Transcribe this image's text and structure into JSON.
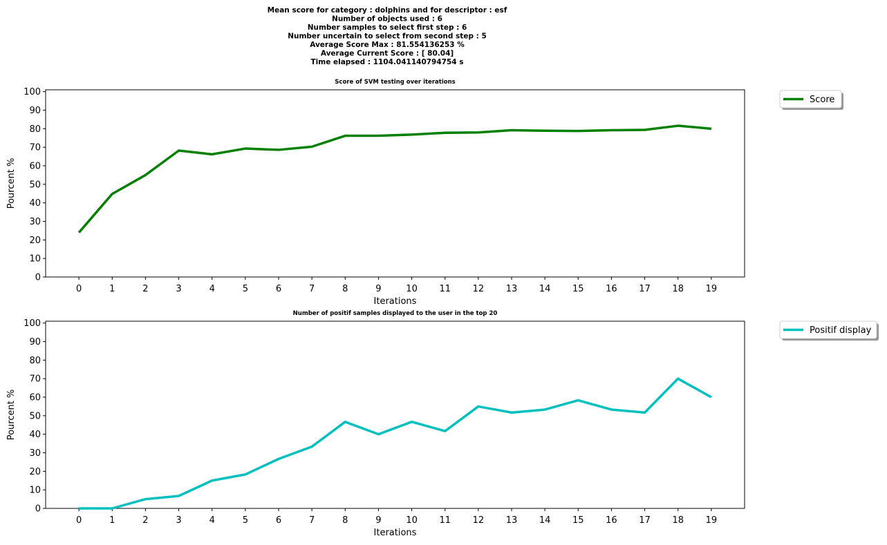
{
  "suptitle_lines": [
    "Mean score for category : dolphins and for descriptor : esf",
    "Number of objects used : 6",
    "Number samples to select first step  : 6",
    "Number uncertain to select from second step  : 5",
    "Average Score Max : 81.554136253 %",
    "Average Current Score : [ 80.04]",
    "Time elapsed : 1104.041140794754 s"
  ],
  "chart_data": [
    {
      "type": "line",
      "title": "Score of SVM testing over iterations",
      "xlabel": "Iterations",
      "ylabel": "Pourcent %",
      "x": [
        0,
        1,
        2,
        3,
        4,
        5,
        6,
        7,
        8,
        9,
        10,
        11,
        12,
        13,
        14,
        15,
        16,
        17,
        18,
        19
      ],
      "xlim": [
        -1,
        20
      ],
      "ylim": [
        0,
        101
      ],
      "yticks": [
        0,
        10,
        20,
        30,
        40,
        50,
        60,
        70,
        80,
        90,
        100
      ],
      "grid": false,
      "legend_position": "outside-top-right",
      "series": [
        {
          "name": "Score",
          "color": "#008000",
          "values": [
            24.0,
            44.8,
            55.0,
            68.2,
            66.2,
            69.3,
            68.6,
            70.3,
            76.2,
            76.2,
            76.8,
            77.8,
            78.0,
            79.2,
            78.9,
            78.8,
            79.2,
            79.4,
            81.6,
            80.0
          ]
        }
      ]
    },
    {
      "type": "line",
      "title": "Number of positif samples displayed to the user in the top 20",
      "xlabel": "Iterations",
      "ylabel": "Pourcent %",
      "x": [
        0,
        1,
        2,
        3,
        4,
        5,
        6,
        7,
        8,
        9,
        10,
        11,
        12,
        13,
        14,
        15,
        16,
        17,
        18,
        19
      ],
      "xlim": [
        -1,
        20
      ],
      "ylim": [
        0,
        101
      ],
      "yticks": [
        0,
        10,
        20,
        30,
        40,
        50,
        60,
        70,
        80,
        90,
        100
      ],
      "grid": false,
      "legend_position": "outside-top-right",
      "series": [
        {
          "name": "Positif display",
          "color": "#00bfbf",
          "values": [
            0.0,
            0.0,
            5.0,
            6.7,
            15.0,
            18.3,
            26.7,
            33.3,
            46.7,
            40.0,
            46.7,
            41.7,
            55.0,
            51.7,
            53.3,
            58.3,
            53.3,
            51.7,
            70.0,
            60.0
          ]
        }
      ]
    }
  ]
}
